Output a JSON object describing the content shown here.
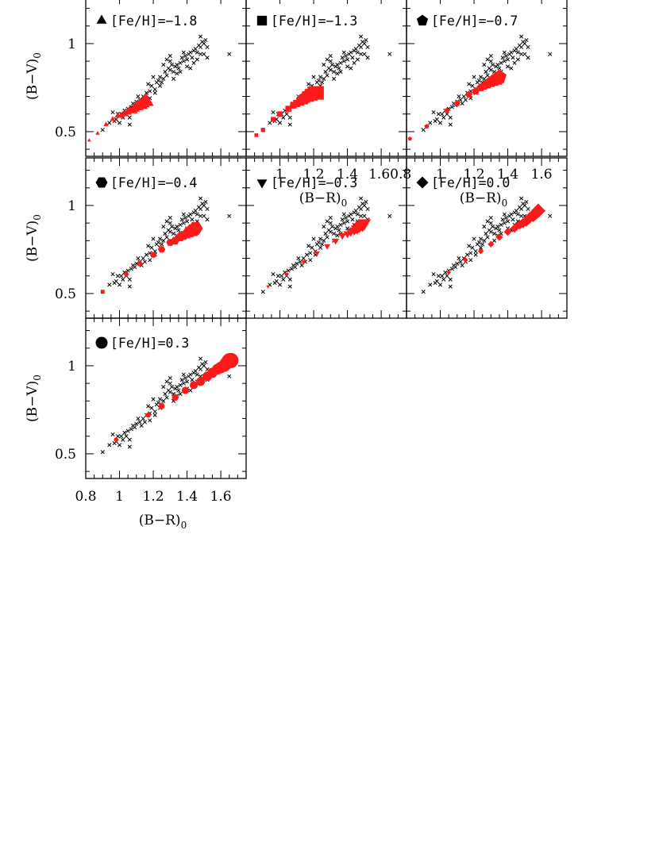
{
  "chart_data": {
    "type": "scatter",
    "xlabel": "(B−R)",
    "xlabel_sub": "0",
    "ylabel": "(B−V)",
    "ylabel_sub": "0",
    "xlim": [
      0.8,
      1.75
    ],
    "ylim": [
      0.36,
      1.27
    ],
    "x_ticks": [
      0.8,
      1,
      1.2,
      1.4,
      1.6
    ],
    "x_tick_labels": [
      "0.8",
      "1",
      "1.2",
      "1.4",
      "1.6"
    ],
    "x_tick_labels_panel2": [
      "1",
      "1.2",
      "1.4",
      "1.60.8"
    ],
    "y_ticks": [
      0.5,
      1
    ],
    "y_tick_labels": [
      "0.5",
      "1"
    ],
    "observed_color": "#000000",
    "model_color": "#ff1a1a",
    "observed": [
      [
        0.9,
        0.51
      ],
      [
        0.94,
        0.55
      ],
      [
        0.98,
        0.57
      ],
      [
        0.96,
        0.61
      ],
      [
        0.99,
        0.6
      ],
      [
        1.01,
        0.6
      ],
      [
        1.03,
        0.62
      ],
      [
        1.05,
        0.63
      ],
      [
        1.04,
        0.6
      ],
      [
        1.02,
        0.58
      ],
      [
        0.97,
        0.56
      ],
      [
        1.06,
        0.54
      ],
      [
        1.07,
        0.64
      ],
      [
        1.08,
        0.66
      ],
      [
        1.1,
        0.67
      ],
      [
        1.12,
        0.68
      ],
      [
        1.14,
        0.7
      ],
      [
        1.16,
        0.72
      ],
      [
        1.15,
        0.68
      ],
      [
        1.18,
        0.73
      ],
      [
        1.19,
        0.76
      ],
      [
        1.21,
        0.74
      ],
      [
        1.22,
        0.78
      ],
      [
        1.23,
        0.79
      ],
      [
        1.24,
        0.81
      ],
      [
        1.25,
        0.78
      ],
      [
        1.26,
        0.8
      ],
      [
        1.27,
        0.84
      ],
      [
        1.28,
        0.82
      ],
      [
        1.29,
        0.86
      ],
      [
        1.3,
        0.85
      ],
      [
        1.31,
        0.88
      ],
      [
        1.32,
        0.84
      ],
      [
        1.33,
        0.87
      ],
      [
        1.34,
        0.88
      ],
      [
        1.35,
        0.86
      ],
      [
        1.36,
        0.89
      ],
      [
        1.37,
        0.92
      ],
      [
        1.38,
        0.9
      ],
      [
        1.39,
        0.93
      ],
      [
        1.4,
        0.91
      ],
      [
        1.41,
        0.94
      ],
      [
        1.42,
        0.95
      ],
      [
        1.43,
        0.92
      ],
      [
        1.44,
        0.96
      ],
      [
        1.45,
        0.97
      ],
      [
        1.46,
        0.95
      ],
      [
        1.47,
        0.99
      ],
      [
        1.48,
        0.98
      ],
      [
        1.49,
        1.01
      ],
      [
        1.5,
        1.0
      ],
      [
        1.51,
        1.02
      ],
      [
        1.48,
        1.04
      ],
      [
        1.52,
        0.98
      ],
      [
        1.3,
        0.93
      ],
      [
        1.28,
        0.91
      ],
      [
        1.26,
        0.88
      ],
      [
        1.2,
        0.81
      ],
      [
        1.17,
        0.77
      ],
      [
        1.11,
        0.7
      ],
      [
        1.09,
        0.65
      ],
      [
        1.13,
        0.66
      ],
      [
        1.21,
        0.72
      ],
      [
        1.34,
        0.83
      ],
      [
        1.4,
        0.87
      ],
      [
        1.46,
        0.91
      ],
      [
        1.5,
        0.94
      ],
      [
        1.36,
        0.84
      ],
      [
        1.24,
        0.76
      ],
      [
        1.32,
        0.8
      ],
      [
        1.44,
        0.89
      ],
      [
        1.52,
        0.92
      ],
      [
        1.65,
        0.94
      ],
      [
        1.18,
        0.69
      ],
      [
        1.06,
        0.58
      ],
      [
        1.0,
        0.55
      ],
      [
        1.42,
        0.86
      ],
      [
        1.38,
        0.95
      ],
      [
        1.3,
        0.9
      ],
      [
        1.48,
        0.94
      ]
    ],
    "series": [
      {
        "name": "[Fe/H]=−1.8",
        "marker": "triangle",
        "points": [
          [
            0.82,
            0.45
          ],
          [
            0.87,
            0.49
          ],
          [
            0.92,
            0.54
          ],
          [
            0.96,
            0.57
          ],
          [
            0.99,
            0.59
          ],
          [
            1.01,
            0.59
          ],
          [
            1.03,
            0.6
          ],
          [
            1.05,
            0.61
          ],
          [
            1.06,
            0.62
          ],
          [
            1.08,
            0.62
          ],
          [
            1.09,
            0.63
          ],
          [
            1.1,
            0.64
          ],
          [
            1.11,
            0.64
          ],
          [
            1.12,
            0.65
          ],
          [
            1.13,
            0.65
          ],
          [
            1.14,
            0.66
          ],
          [
            1.15,
            0.67
          ],
          [
            1.16,
            0.67
          ]
        ]
      },
      {
        "name": "[Fe/H]=−1.3",
        "marker": "square",
        "points": [
          [
            0.86,
            0.48
          ],
          [
            0.9,
            0.51
          ],
          [
            0.96,
            0.57
          ],
          [
            1.0,
            0.6
          ],
          [
            1.05,
            0.63
          ],
          [
            1.08,
            0.65
          ],
          [
            1.1,
            0.66
          ],
          [
            1.12,
            0.67
          ],
          [
            1.13,
            0.68
          ],
          [
            1.14,
            0.68
          ],
          [
            1.15,
            0.69
          ],
          [
            1.16,
            0.7
          ],
          [
            1.17,
            0.7
          ],
          [
            1.18,
            0.71
          ],
          [
            1.19,
            0.71
          ],
          [
            1.2,
            0.72
          ],
          [
            1.21,
            0.72
          ],
          [
            1.22,
            0.72
          ]
        ]
      },
      {
        "name": "[Fe/H]=−0.7",
        "marker": "pentagon",
        "points": [
          [
            0.82,
            0.46
          ],
          [
            0.92,
            0.53
          ],
          [
            1.04,
            0.62
          ],
          [
            1.1,
            0.66
          ],
          [
            1.17,
            0.71
          ],
          [
            1.21,
            0.73
          ],
          [
            1.24,
            0.75
          ],
          [
            1.26,
            0.76
          ],
          [
            1.28,
            0.77
          ],
          [
            1.29,
            0.78
          ],
          [
            1.3,
            0.78
          ],
          [
            1.31,
            0.79
          ],
          [
            1.32,
            0.79
          ],
          [
            1.33,
            0.8
          ],
          [
            1.34,
            0.8
          ],
          [
            1.35,
            0.81
          ]
        ]
      },
      {
        "name": "[Fe/H]=−0.4",
        "marker": "hexagon",
        "points": [
          [
            0.9,
            0.51
          ],
          [
            1.04,
            0.61
          ],
          [
            1.12,
            0.67
          ],
          [
            1.2,
            0.72
          ],
          [
            1.25,
            0.75
          ],
          [
            1.3,
            0.79
          ],
          [
            1.33,
            0.8
          ],
          [
            1.36,
            0.82
          ],
          [
            1.38,
            0.83
          ],
          [
            1.4,
            0.84
          ],
          [
            1.41,
            0.85
          ],
          [
            1.42,
            0.85
          ],
          [
            1.43,
            0.86
          ],
          [
            1.44,
            0.86
          ],
          [
            1.45,
            0.87
          ]
        ]
      },
      {
        "name": "[Fe/H]=−0.3",
        "marker": "down-triangle",
        "points": [
          [
            0.93,
            0.54
          ],
          [
            1.04,
            0.61
          ],
          [
            1.14,
            0.68
          ],
          [
            1.22,
            0.73
          ],
          [
            1.28,
            0.77
          ],
          [
            1.33,
            0.8
          ],
          [
            1.37,
            0.83
          ],
          [
            1.4,
            0.84
          ],
          [
            1.42,
            0.85
          ],
          [
            1.44,
            0.86
          ],
          [
            1.45,
            0.87
          ],
          [
            1.46,
            0.87
          ],
          [
            1.47,
            0.88
          ],
          [
            1.48,
            0.89
          ],
          [
            1.49,
            0.89
          ],
          [
            1.5,
            0.9
          ]
        ]
      },
      {
        "name": "[Fe/H]=0.0",
        "marker": "diamond",
        "points": [
          [
            1.05,
            0.62
          ],
          [
            1.15,
            0.69
          ],
          [
            1.24,
            0.74
          ],
          [
            1.3,
            0.78
          ],
          [
            1.35,
            0.82
          ],
          [
            1.4,
            0.85
          ],
          [
            1.44,
            0.87
          ],
          [
            1.47,
            0.89
          ],
          [
            1.49,
            0.9
          ],
          [
            1.51,
            0.91
          ],
          [
            1.53,
            0.93
          ],
          [
            1.55,
            0.94
          ],
          [
            1.56,
            0.95
          ],
          [
            1.57,
            0.96
          ],
          [
            1.58,
            0.97
          ]
        ]
      },
      {
        "name": "[Fe/H]=0.3",
        "marker": "circle",
        "points": [
          [
            0.98,
            0.58
          ],
          [
            1.17,
            0.72
          ],
          [
            1.25,
            0.77
          ],
          [
            1.33,
            0.82
          ],
          [
            1.39,
            0.86
          ],
          [
            1.44,
            0.89
          ],
          [
            1.48,
            0.91
          ],
          [
            1.52,
            0.94
          ],
          [
            1.55,
            0.96
          ],
          [
            1.58,
            0.98
          ],
          [
            1.6,
            0.99
          ],
          [
            1.62,
            1.0
          ],
          [
            1.63,
            1.01
          ],
          [
            1.64,
            1.02
          ],
          [
            1.65,
            1.03
          ],
          [
            1.66,
            1.03
          ]
        ]
      }
    ]
  }
}
